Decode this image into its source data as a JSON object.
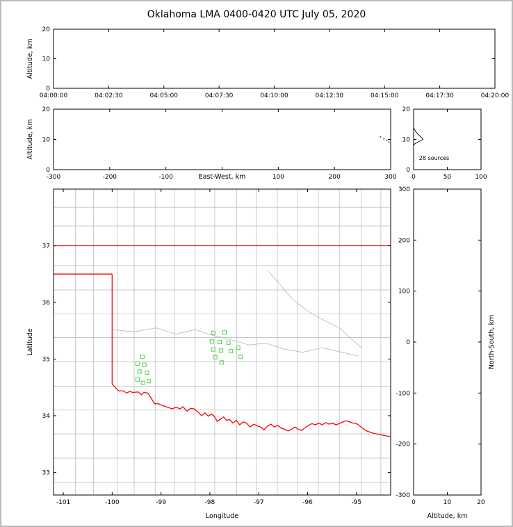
{
  "title": "Oklahoma LMA 0400-0420 UTC July 05, 2020",
  "colors": {
    "axis": "#000000",
    "county_line": "#b5b5b5",
    "state_border": "#ff0000",
    "source_marker": "#5cd65c",
    "speck": "#556655",
    "histogram_line": "#000000",
    "frame_border": "#b9b9b9"
  },
  "annotations": {
    "histogram_sources": "28 sources"
  },
  "chart_data": [
    {
      "id": "time_height",
      "type": "scatter",
      "title": "",
      "xlabel": "",
      "ylabel": "Altitude, km",
      "ylabel_side": "left",
      "xlim": [
        0,
        1200
      ],
      "ylim": [
        0,
        20
      ],
      "xticks": [
        {
          "v": 0,
          "l": "04:00:00"
        },
        {
          "v": 150,
          "l": "04:02:30"
        },
        {
          "v": 300,
          "l": "04:05:00"
        },
        {
          "v": 450,
          "l": "04:07:30"
        },
        {
          "v": 600,
          "l": "04:10:00"
        },
        {
          "v": 750,
          "l": "04:12:30"
        },
        {
          "v": 900,
          "l": "04:15:00"
        },
        {
          "v": 1050,
          "l": "04:17:30"
        },
        {
          "v": 1200,
          "l": "04:20:00"
        }
      ],
      "yticks": [
        {
          "v": 0,
          "l": "0"
        },
        {
          "v": 10,
          "l": "10"
        },
        {
          "v": 20,
          "l": "20"
        }
      ],
      "markers": []
    },
    {
      "id": "ew_height",
      "type": "scatter",
      "xlabel": "East-West, km",
      "xlabel_inline": true,
      "ylabel": "Altitude, km",
      "ylabel_side": "left",
      "xlim": [
        -300,
        300
      ],
      "ylim": [
        0,
        20
      ],
      "xticks": [
        {
          "v": -300,
          "l": "-300"
        },
        {
          "v": -200,
          "l": "-200"
        },
        {
          "v": -100,
          "l": "-100"
        },
        {
          "v": 0,
          "l": ""
        },
        {
          "v": 100,
          "l": "100"
        },
        {
          "v": 200,
          "l": "200"
        },
        {
          "v": 300,
          "l": "300"
        }
      ],
      "yticks": [
        {
          "v": 0,
          "l": "0"
        },
        {
          "v": 10,
          "l": "10"
        },
        {
          "v": 20,
          "l": "20"
        }
      ],
      "markers": [
        {
          "shape": "dot",
          "color_key": "speck",
          "size": 2.2,
          "points": [
            [
              282,
              10.8
            ],
            [
              288,
              10.2
            ],
            [
              293,
              9.7
            ],
            [
              297,
              9.1
            ]
          ]
        }
      ]
    },
    {
      "id": "alt_histogram",
      "type": "line",
      "xlabel": "",
      "ylabel": "",
      "xlim": [
        0,
        100
      ],
      "ylim": [
        0,
        20
      ],
      "xticks": [
        {
          "v": 0,
          "l": "0"
        },
        {
          "v": 50,
          "l": "50"
        },
        {
          "v": 100,
          "l": "100"
        }
      ],
      "yticks": [
        {
          "v": 0,
          "l": "0"
        },
        {
          "v": 10,
          "l": "10"
        },
        {
          "v": 20,
          "l": "20"
        }
      ],
      "annotation": {
        "text": "28 sources",
        "rx": 0.08,
        "ry": 0.84
      },
      "lines": [
        {
          "color_key": "histogram_line",
          "width": 0.9,
          "points": [
            [
              0,
              14.0
            ],
            [
              1,
              13.4
            ],
            [
              3,
              12.6
            ],
            [
              7,
              11.6
            ],
            [
              12,
              10.6
            ],
            [
              14,
              10.0
            ],
            [
              8,
              9.3
            ],
            [
              2,
              8.6
            ],
            [
              0,
              8.0
            ]
          ]
        }
      ]
    },
    {
      "id": "plan_view",
      "type": "map_scatter",
      "xlabel": "Longitude",
      "ylabel": "Latitude",
      "ylabel_side": "left",
      "xlim": [
        -101.2,
        -94.3
      ],
      "ylim": [
        32.6,
        38.0
      ],
      "xticks": [
        {
          "v": -101,
          "l": "-101"
        },
        {
          "v": -100,
          "l": "-100"
        },
        {
          "v": -99,
          "l": "-99"
        },
        {
          "v": -98,
          "l": "-98"
        },
        {
          "v": -97,
          "l": "-97"
        },
        {
          "v": -96,
          "l": "-96"
        },
        {
          "v": -95,
          "l": "-95"
        }
      ],
      "yticks": [
        {
          "v": 33,
          "l": "33"
        },
        {
          "v": 34,
          "l": "34"
        },
        {
          "v": 35,
          "l": "35"
        },
        {
          "v": 36,
          "l": "36"
        },
        {
          "v": 37,
          "l": "37"
        }
      ],
      "county_grid": {
        "lon_lines": [
          -100.75,
          -100.38,
          -99.9,
          -99.55,
          -99.12,
          -98.73,
          -98.3,
          -97.9,
          -97.45,
          -97.05,
          -96.62,
          -96.2,
          -95.78,
          -95.35,
          -94.9,
          -94.5
        ],
        "lat_lines": [
          32.82,
          33.25,
          33.68,
          34.1,
          34.52,
          34.95,
          35.38,
          35.8,
          36.22,
          36.65,
          37.35,
          37.68
        ]
      },
      "gray_polylines": [
        {
          "points": [
            [
              -100.0,
              35.52
            ],
            [
              -99.55,
              35.48
            ],
            [
              -99.1,
              35.55
            ],
            [
              -98.7,
              35.44
            ],
            [
              -98.3,
              35.52
            ],
            [
              -97.95,
              35.42
            ],
            [
              -97.6,
              35.35
            ],
            [
              -97.2,
              35.25
            ],
            [
              -96.85,
              35.28
            ],
            [
              -96.5,
              35.18
            ],
            [
              -96.1,
              35.12
            ],
            [
              -95.7,
              35.2
            ],
            [
              -95.3,
              35.12
            ],
            [
              -94.95,
              35.05
            ]
          ]
        },
        {
          "points": [
            [
              -96.8,
              36.55
            ],
            [
              -96.55,
              36.3
            ],
            [
              -96.3,
              36.05
            ],
            [
              -96.0,
              35.85
            ],
            [
              -95.7,
              35.7
            ],
            [
              -95.35,
              35.55
            ],
            [
              -95.1,
              35.35
            ],
            [
              -94.9,
              35.2
            ]
          ]
        }
      ],
      "state_border": [
        {
          "name": "kansas-oklahoma-north-border",
          "points": [
            [
              -101.2,
              37.0
            ],
            [
              -94.3,
              37.0
            ]
          ]
        },
        {
          "name": "panhandle-south-border",
          "points": [
            [
              -101.2,
              36.5
            ],
            [
              -100.0,
              36.5
            ]
          ]
        },
        {
          "name": "texas-west-border",
          "points": [
            [
              -100.0,
              36.5
            ],
            [
              -100.0,
              34.56
            ]
          ]
        },
        {
          "name": "red-river-border",
          "points": [
            [
              -100.0,
              34.56
            ],
            [
              -99.95,
              34.51
            ],
            [
              -99.87,
              34.44
            ],
            [
              -99.78,
              34.44
            ],
            [
              -99.7,
              34.4
            ],
            [
              -99.64,
              34.43
            ],
            [
              -99.58,
              34.41
            ],
            [
              -99.47,
              34.42
            ],
            [
              -99.4,
              34.37
            ],
            [
              -99.35,
              34.41
            ],
            [
              -99.27,
              34.4
            ],
            [
              -99.21,
              34.32
            ],
            [
              -99.13,
              34.21
            ],
            [
              -99.05,
              34.21
            ],
            [
              -98.97,
              34.18
            ],
            [
              -98.87,
              34.15
            ],
            [
              -98.77,
              34.12
            ],
            [
              -98.69,
              34.15
            ],
            [
              -98.61,
              34.12
            ],
            [
              -98.55,
              34.16
            ],
            [
              -98.47,
              34.08
            ],
            [
              -98.39,
              34.13
            ],
            [
              -98.32,
              34.12
            ],
            [
              -98.25,
              34.07
            ],
            [
              -98.17,
              34.0
            ],
            [
              -98.1,
              34.05
            ],
            [
              -98.03,
              33.99
            ],
            [
              -97.97,
              34.03
            ],
            [
              -97.91,
              33.99
            ],
            [
              -97.85,
              33.9
            ],
            [
              -97.78,
              33.94
            ],
            [
              -97.72,
              33.98
            ],
            [
              -97.66,
              33.92
            ],
            [
              -97.59,
              33.93
            ],
            [
              -97.53,
              33.87
            ],
            [
              -97.46,
              33.92
            ],
            [
              -97.39,
              33.84
            ],
            [
              -97.32,
              33.89
            ],
            [
              -97.25,
              33.87
            ],
            [
              -97.18,
              33.8
            ],
            [
              -97.1,
              33.85
            ],
            [
              -97.03,
              33.82
            ],
            [
              -96.96,
              33.8
            ],
            [
              -96.89,
              33.75
            ],
            [
              -96.82,
              33.82
            ],
            [
              -96.75,
              33.85
            ],
            [
              -96.68,
              33.8
            ],
            [
              -96.61,
              33.83
            ],
            [
              -96.54,
              33.78
            ],
            [
              -96.47,
              33.76
            ],
            [
              -96.4,
              33.73
            ],
            [
              -96.33,
              33.76
            ],
            [
              -96.26,
              33.8
            ],
            [
              -96.19,
              33.76
            ],
            [
              -96.12,
              33.74
            ],
            [
              -96.05,
              33.79
            ],
            [
              -95.98,
              33.83
            ],
            [
              -95.91,
              33.86
            ],
            [
              -95.84,
              33.84
            ],
            [
              -95.77,
              33.87
            ],
            [
              -95.7,
              33.84
            ],
            [
              -95.63,
              33.88
            ],
            [
              -95.56,
              33.85
            ],
            [
              -95.49,
              33.87
            ],
            [
              -95.42,
              33.84
            ],
            [
              -95.35,
              33.86
            ],
            [
              -95.28,
              33.89
            ],
            [
              -95.21,
              33.91
            ],
            [
              -95.14,
              33.89
            ],
            [
              -95.07,
              33.87
            ],
            [
              -95.0,
              33.86
            ],
            [
              -94.93,
              33.82
            ],
            [
              -94.86,
              33.77
            ],
            [
              -94.79,
              33.73
            ],
            [
              -94.72,
              33.71
            ],
            [
              -94.65,
              33.69
            ],
            [
              -94.55,
              33.67
            ],
            [
              -94.3,
              33.63
            ]
          ]
        }
      ],
      "markers": [
        {
          "shape": "square",
          "color_key": "source_marker",
          "size": 5,
          "points": [
            [
              -97.93,
              35.46
            ],
            [
              -97.7,
              35.47
            ],
            [
              -97.96,
              35.31
            ],
            [
              -97.8,
              35.3
            ],
            [
              -97.62,
              35.29
            ],
            [
              -97.93,
              35.17
            ],
            [
              -97.77,
              35.15
            ],
            [
              -97.57,
              35.14
            ],
            [
              -97.42,
              35.2
            ],
            [
              -97.37,
              35.04
            ],
            [
              -97.76,
              34.94
            ],
            [
              -97.89,
              35.03
            ],
            [
              -99.38,
              35.04
            ],
            [
              -99.48,
              34.92
            ],
            [
              -99.34,
              34.9
            ],
            [
              -99.44,
              34.78
            ],
            [
              -99.29,
              34.76
            ],
            [
              -99.48,
              34.64
            ],
            [
              -99.37,
              34.58
            ],
            [
              -99.25,
              34.61
            ]
          ]
        }
      ]
    },
    {
      "id": "ns_height",
      "type": "scatter",
      "xlabel": "Altitude, km",
      "ylabel": "North-South, km",
      "ylabel_side": "right",
      "xlim": [
        0,
        20
      ],
      "ylim": [
        -300,
        300
      ],
      "xticks": [
        {
          "v": 0,
          "l": "0"
        },
        {
          "v": 10,
          "l": "10"
        },
        {
          "v": 20,
          "l": "20"
        }
      ],
      "yticks": [
        {
          "v": 300,
          "l": "300"
        },
        {
          "v": 200,
          "l": "200"
        },
        {
          "v": 100,
          "l": "100"
        },
        {
          "v": 0,
          "l": "0"
        },
        {
          "v": -100,
          "l": "-100"
        },
        {
          "v": -200,
          "l": "-200"
        },
        {
          "v": -300,
          "l": "-300"
        }
      ],
      "markers": []
    }
  ]
}
